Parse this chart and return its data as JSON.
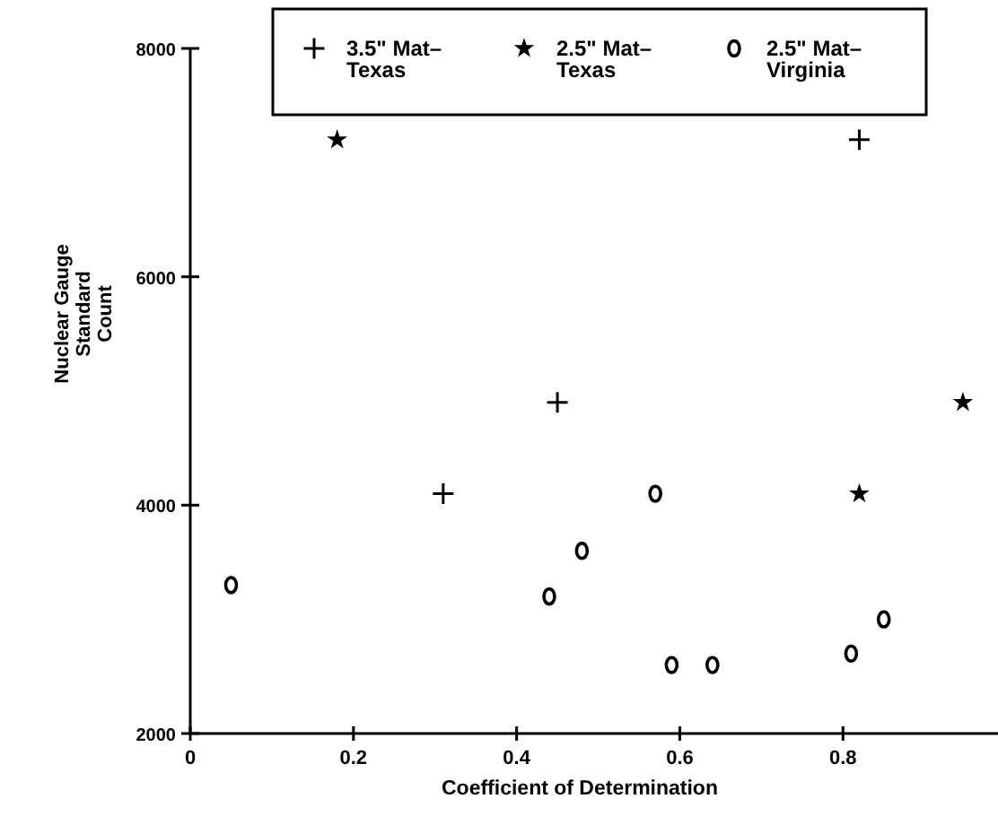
{
  "chart_data": {
    "type": "scatter",
    "xlabel": "Coefficient of Determination",
    "ylabel": "Nuclear Gauge Standard Count",
    "xlim": [
      0,
      0.99
    ],
    "xticks": [
      0,
      0.2,
      0.4,
      0.6,
      0.8
    ],
    "ylim": [
      2000,
      8000
    ],
    "yticks": [
      2000,
      4000,
      6000,
      8000
    ],
    "legend": "top right",
    "grid": false,
    "series": [
      {
        "name": "3.5\" Mat–Texas",
        "color": "#000000",
        "marker": "cross",
        "x": [
          0.31,
          0.45,
          0.82
        ],
        "values": [
          4100,
          4900,
          7200
        ]
      },
      {
        "name": "2.5\" Mat–Texas",
        "color": "#000000",
        "marker": "star",
        "x": [
          0.18,
          0.82,
          0.947
        ],
        "values": [
          7200,
          4100,
          4900
        ]
      },
      {
        "name": "2.5\" Mat–Virginia",
        "color": "#000000",
        "marker": "circle",
        "x": [
          0.05,
          0.44,
          0.48,
          0.57,
          0.59,
          0.64,
          0.81,
          0.85
        ],
        "values": [
          3300,
          3200,
          3600,
          4100,
          2600,
          2600,
          2700,
          3000
        ]
      }
    ]
  }
}
